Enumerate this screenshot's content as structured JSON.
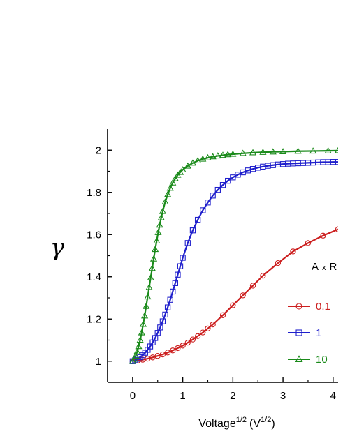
{
  "chart_data": {
    "type": "line",
    "xlabel": {
      "base": "Voltage",
      "base_exp": "1/2",
      "unit_open": "(V",
      "unit_exp": "1/2",
      "unit_close": ")"
    },
    "ylabel": "γ",
    "xlim": [
      -0.5,
      4.1
    ],
    "ylim": [
      0.9,
      2.1
    ],
    "xticks": [
      0,
      1,
      2,
      3,
      4
    ],
    "yticks": [
      1,
      1.2,
      1.4,
      1.6,
      1.8,
      2
    ],
    "ytick_labels": [
      "1",
      "1.2",
      "1.4",
      "1.6",
      "1.8",
      "2"
    ],
    "grid": false,
    "legend": {
      "title_parts": [
        "A",
        "x",
        "R"
      ],
      "placement": "right"
    },
    "series": [
      {
        "name": "0.1",
        "color": "#cc1f1f",
        "marker": "circle",
        "x": [
          0,
          0.1,
          0.2,
          0.3,
          0.4,
          0.5,
          0.6,
          0.7,
          0.8,
          0.9,
          1.0,
          1.1,
          1.2,
          1.3,
          1.4,
          1.5,
          1.6,
          1.8,
          2.0,
          2.2,
          2.4,
          2.6,
          2.9,
          3.2,
          3.5,
          3.8,
          4.1
        ],
        "y": [
          1.0,
          1.003,
          1.007,
          1.012,
          1.018,
          1.025,
          1.032,
          1.041,
          1.051,
          1.062,
          1.074,
          1.088,
          1.103,
          1.119,
          1.136,
          1.155,
          1.174,
          1.218,
          1.265,
          1.312,
          1.358,
          1.405,
          1.465,
          1.52,
          1.56,
          1.595,
          1.625
        ]
      },
      {
        "name": "1",
        "color": "#1f1fcc",
        "marker": "square",
        "x": [
          0,
          0.05,
          0.1,
          0.15,
          0.2,
          0.25,
          0.3,
          0.35,
          0.4,
          0.45,
          0.5,
          0.55,
          0.6,
          0.65,
          0.7,
          0.75,
          0.8,
          0.85,
          0.9,
          0.95,
          1.0,
          1.1,
          1.2,
          1.3,
          1.4,
          1.5,
          1.6,
          1.7,
          1.8,
          1.9,
          2.0,
          2.1,
          2.2,
          2.3,
          2.4,
          2.5,
          2.6,
          2.7,
          2.8,
          2.9,
          3.0,
          3.1,
          3.2,
          3.3,
          3.4,
          3.5,
          3.6,
          3.7,
          3.8,
          3.9,
          4.0,
          4.1
        ],
        "y": [
          1.0,
          1.005,
          1.011,
          1.019,
          1.028,
          1.04,
          1.054,
          1.07,
          1.089,
          1.11,
          1.134,
          1.16,
          1.189,
          1.221,
          1.255,
          1.291,
          1.33,
          1.37,
          1.41,
          1.45,
          1.49,
          1.56,
          1.62,
          1.67,
          1.715,
          1.752,
          1.785,
          1.812,
          1.835,
          1.855,
          1.871,
          1.884,
          1.895,
          1.904,
          1.911,
          1.917,
          1.922,
          1.926,
          1.929,
          1.932,
          1.934,
          1.936,
          1.937,
          1.938,
          1.939,
          1.94,
          1.941,
          1.942,
          1.943,
          1.943,
          1.944,
          1.944
        ]
      },
      {
        "name": "10",
        "color": "#1a8a1a",
        "marker": "triangle",
        "x": [
          0,
          0.03,
          0.06,
          0.09,
          0.12,
          0.15,
          0.18,
          0.21,
          0.24,
          0.27,
          0.3,
          0.33,
          0.36,
          0.39,
          0.42,
          0.45,
          0.48,
          0.51,
          0.54,
          0.57,
          0.6,
          0.65,
          0.7,
          0.75,
          0.8,
          0.85,
          0.9,
          0.95,
          1.0,
          1.1,
          1.2,
          1.3,
          1.4,
          1.5,
          1.6,
          1.7,
          1.8,
          1.9,
          2.0,
          2.2,
          2.4,
          2.6,
          2.8,
          3.0,
          3.3,
          3.6,
          3.9,
          4.1
        ],
        "y": [
          1.0,
          1.01,
          1.025,
          1.045,
          1.07,
          1.1,
          1.135,
          1.175,
          1.215,
          1.26,
          1.305,
          1.35,
          1.395,
          1.44,
          1.485,
          1.53,
          1.57,
          1.61,
          1.645,
          1.68,
          1.71,
          1.755,
          1.79,
          1.82,
          1.845,
          1.865,
          1.882,
          1.895,
          1.907,
          1.925,
          1.939,
          1.95,
          1.958,
          1.964,
          1.969,
          1.973,
          1.976,
          1.979,
          1.981,
          1.985,
          1.988,
          1.99,
          1.992,
          1.993,
          1.995,
          1.996,
          1.997,
          1.998
        ]
      }
    ]
  }
}
